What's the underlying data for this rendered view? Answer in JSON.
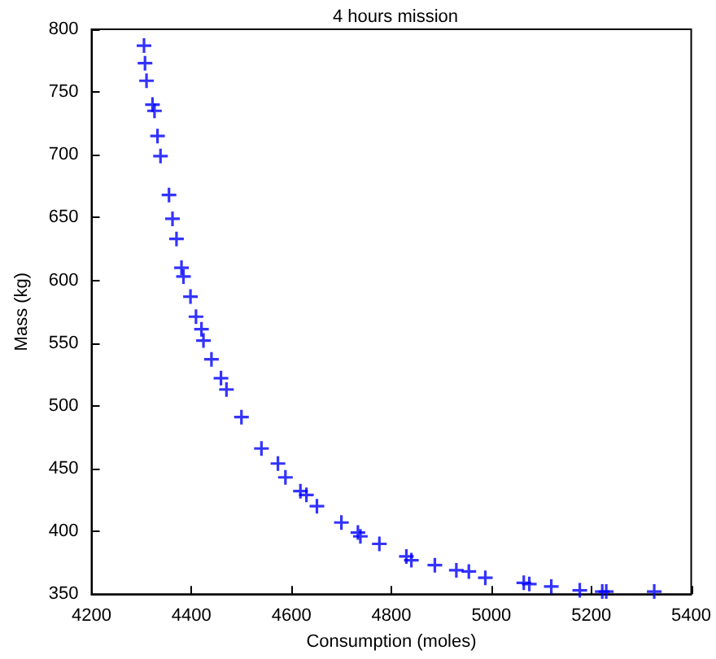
{
  "chart_data": {
    "type": "scatter",
    "title": "4 hours mission",
    "xlabel": "Consumption (moles)",
    "ylabel": "Mass (kg)",
    "marker": "cross",
    "grid": false,
    "series": [
      {
        "color": "#0000ff",
        "x": [
          4305,
          4307,
          4310,
          4322,
          4326,
          4332,
          4338,
          4355,
          4362,
          4370,
          4380,
          4384,
          4398,
          4409,
          4420,
          4424,
          4440,
          4459,
          4470,
          4500,
          4540,
          4573,
          4588,
          4618,
          4630,
          4651,
          4700,
          4733,
          4738,
          4776,
          4830,
          4840,
          4887,
          4930,
          4955,
          4988,
          5065,
          5076,
          5120,
          5177,
          5222,
          5230,
          5326
        ],
        "values": [
          787,
          773,
          759,
          740,
          735,
          715,
          699,
          668,
          649,
          633,
          610,
          603,
          587,
          571,
          561,
          552,
          537,
          522,
          513,
          491,
          466,
          454,
          443,
          432,
          429,
          420,
          407,
          399,
          396,
          390,
          380,
          377,
          373,
          369,
          368,
          363,
          359,
          358,
          356,
          353,
          352,
          352,
          352
        ]
      }
    ],
    "xlim": [
      4200,
      5400
    ],
    "xticks": [
      4200,
      4400,
      4600,
      4800,
      5000,
      5200,
      5400
    ],
    "ylim": [
      350,
      800
    ],
    "yticks": [
      350,
      400,
      450,
      500,
      550,
      600,
      650,
      700,
      750,
      800
    ]
  }
}
